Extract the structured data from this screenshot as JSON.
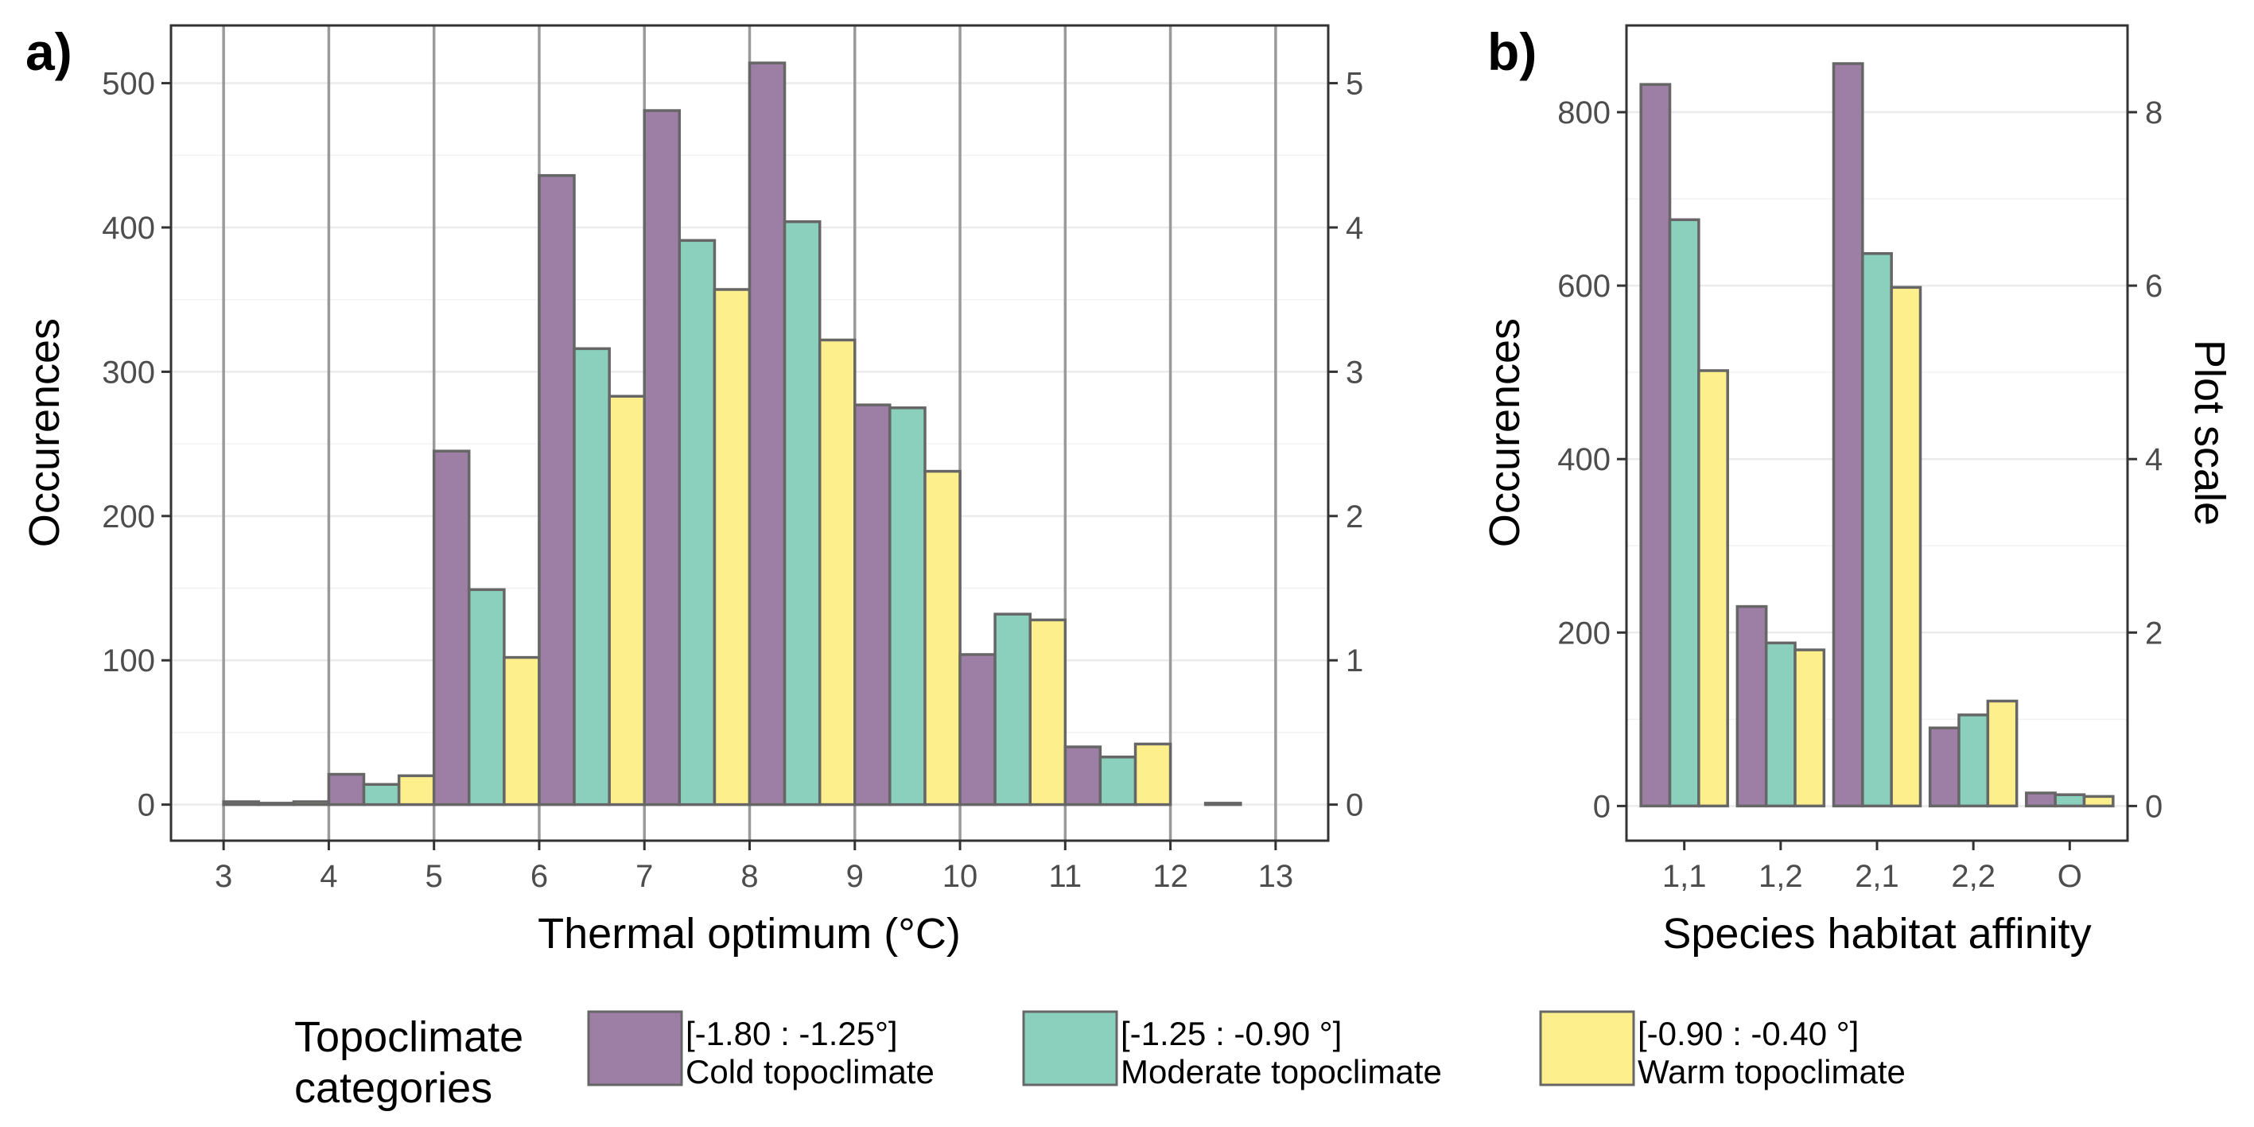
{
  "figure": {
    "legend": {
      "title_line1": "Topoclimate",
      "title_line2": "categories",
      "items": [
        {
          "range": "[-1.80 : -1.25°]",
          "label": "Cold topoclimate",
          "color": "#9d7fa6"
        },
        {
          "range": "[-1.25 : -0.90 °]",
          "label": "Moderate topoclimate",
          "color": "#8ad0bd"
        },
        {
          "range": "[-0.90 : -0.40 °]",
          "label": "Warm topoclimate",
          "color": "#fdef8c"
        }
      ]
    }
  },
  "chart_data": [
    {
      "panel_label": "a)",
      "type": "bar",
      "xlabel": "Thermal optimum (°C)",
      "ylabel": "Occurences",
      "y2label": "",
      "xlim": [
        2.5,
        13.5
      ],
      "ylim": [
        -25,
        540
      ],
      "x_ticks": [
        3,
        4,
        5,
        6,
        7,
        8,
        9,
        10,
        11,
        12,
        13
      ],
      "y_ticks": [
        0,
        100,
        200,
        300,
        400,
        500
      ],
      "y2_ticks": [
        0,
        1,
        2,
        3,
        4,
        5
      ],
      "y2_scale": 100,
      "vertical_gridlines": true,
      "bars": [
        {
          "x0": 3.0,
          "x1": 3.333,
          "series": 0,
          "value": 2
        },
        {
          "x0": 3.333,
          "x1": 3.667,
          "series": 1,
          "value": 1
        },
        {
          "x0": 3.667,
          "x1": 4.0,
          "series": 2,
          "value": 2
        },
        {
          "x0": 4.0,
          "x1": 4.333,
          "series": 0,
          "value": 21
        },
        {
          "x0": 4.333,
          "x1": 4.667,
          "series": 1,
          "value": 14
        },
        {
          "x0": 4.667,
          "x1": 5.0,
          "series": 2,
          "value": 20
        },
        {
          "x0": 5.0,
          "x1": 5.333,
          "series": 0,
          "value": 245
        },
        {
          "x0": 5.333,
          "x1": 5.667,
          "series": 1,
          "value": 149
        },
        {
          "x0": 5.667,
          "x1": 6.0,
          "series": 2,
          "value": 102
        },
        {
          "x0": 6.0,
          "x1": 6.333,
          "series": 0,
          "value": 436
        },
        {
          "x0": 6.333,
          "x1": 6.667,
          "series": 1,
          "value": 316
        },
        {
          "x0": 6.667,
          "x1": 7.0,
          "series": 2,
          "value": 283
        },
        {
          "x0": 7.0,
          "x1": 7.333,
          "series": 0,
          "value": 481
        },
        {
          "x0": 7.333,
          "x1": 7.667,
          "series": 1,
          "value": 391
        },
        {
          "x0": 7.667,
          "x1": 8.0,
          "series": 2,
          "value": 357
        },
        {
          "x0": 8.0,
          "x1": 8.333,
          "series": 0,
          "value": 514
        },
        {
          "x0": 8.333,
          "x1": 8.667,
          "series": 1,
          "value": 404
        },
        {
          "x0": 8.667,
          "x1": 9.0,
          "series": 2,
          "value": 322
        },
        {
          "x0": 9.0,
          "x1": 9.333,
          "series": 0,
          "value": 277
        },
        {
          "x0": 9.333,
          "x1": 9.667,
          "series": 1,
          "value": 275
        },
        {
          "x0": 9.667,
          "x1": 10.0,
          "series": 2,
          "value": 231
        },
        {
          "x0": 10.0,
          "x1": 10.333,
          "series": 0,
          "value": 104
        },
        {
          "x0": 10.333,
          "x1": 10.667,
          "series": 1,
          "value": 132
        },
        {
          "x0": 10.667,
          "x1": 11.0,
          "series": 2,
          "value": 128
        },
        {
          "x0": 11.0,
          "x1": 11.333,
          "series": 0,
          "value": 40
        },
        {
          "x0": 11.333,
          "x1": 11.667,
          "series": 1,
          "value": 33
        },
        {
          "x0": 11.667,
          "x1": 12.0,
          "series": 2,
          "value": 42
        },
        {
          "x0": 12.0,
          "x1": 12.333,
          "series": 0,
          "value": 0
        },
        {
          "x0": 12.333,
          "x1": 12.667,
          "series": 1,
          "value": 1
        },
        {
          "x0": 12.667,
          "x1": 13.0,
          "series": 2,
          "value": 0
        }
      ]
    },
    {
      "panel_label": "b)",
      "type": "bar",
      "xlabel": "Species habitat affinity",
      "ylabel": "Occurences",
      "y2label": "Plot scale",
      "ylim": [
        -40,
        900
      ],
      "y_ticks": [
        0,
        200,
        400,
        600,
        800
      ],
      "y2_ticks": [
        0,
        2,
        4,
        6,
        8
      ],
      "y2_scale": 100,
      "categories": [
        "1,1",
        "1,2",
        "2,1",
        "2,2",
        "O"
      ],
      "series": [
        {
          "name": "Cold topoclimate",
          "values": [
            832,
            230,
            856,
            90,
            15
          ]
        },
        {
          "name": "Moderate topoclimate",
          "values": [
            676,
            188,
            637,
            105,
            13
          ]
        },
        {
          "name": "Warm topoclimate",
          "values": [
            502,
            180,
            598,
            121,
            11
          ]
        }
      ]
    }
  ]
}
